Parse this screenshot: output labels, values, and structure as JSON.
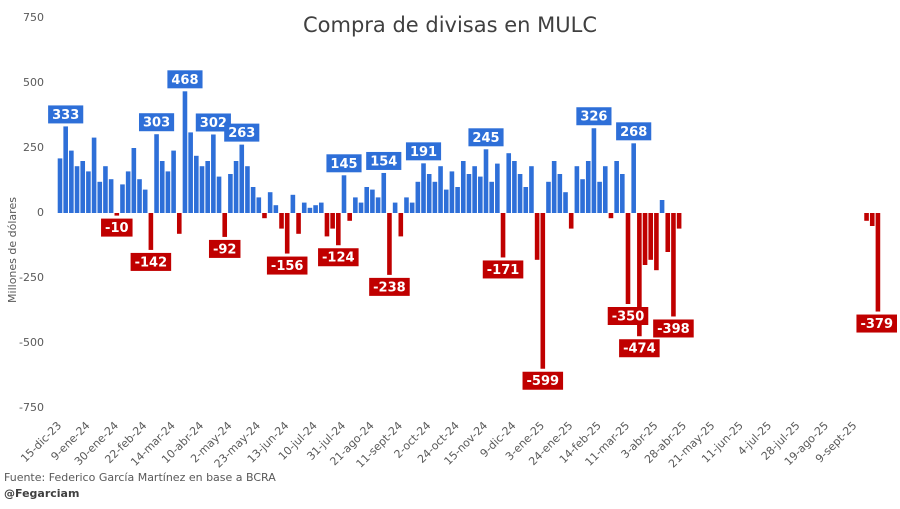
{
  "chart_data": {
    "type": "bar",
    "title": "Compra de divisas en MULC",
    "y_label": "Millones de dólares",
    "source": "Fuente: Federico García Martínez en base a BCRA",
    "credit": "@Fegarciam",
    "color": "#2e6fd8",
    "negative_color": "#c00000",
    "ylim": [
      -750,
      750
    ],
    "yticks": [
      -750,
      -500,
      -250,
      0,
      250,
      500,
      750
    ],
    "grid": false,
    "categories": [
      "15-dic-23",
      null,
      null,
      null,
      null,
      "9-ene-24",
      null,
      null,
      null,
      null,
      "30-ene-24",
      null,
      null,
      null,
      null,
      "22-feb-24",
      null,
      null,
      null,
      null,
      "14-mar-24",
      null,
      null,
      null,
      null,
      "10-abr-24",
      null,
      null,
      null,
      null,
      "2-may-24",
      null,
      null,
      null,
      null,
      "23-may-24",
      null,
      null,
      null,
      null,
      "13-jun-24",
      null,
      null,
      null,
      null,
      "10-jul-24",
      null,
      null,
      null,
      null,
      "31-jul-24",
      null,
      null,
      null,
      null,
      "21-ago-24",
      null,
      null,
      null,
      null,
      "11-sept-24",
      null,
      null,
      null,
      null,
      "2-oct-24",
      null,
      null,
      null,
      null,
      "24-oct-24",
      null,
      null,
      null,
      null,
      "15-nov-24",
      null,
      null,
      null,
      null,
      "9-dic-24",
      null,
      null,
      null,
      null,
      "3-ene-25",
      null,
      null,
      null,
      null,
      "24-ene-25",
      null,
      null,
      null,
      null,
      "14-feb-25",
      null,
      null,
      null,
      null,
      "11-mar-25",
      null,
      null,
      null,
      null,
      "3-abr-25",
      null,
      null,
      null,
      null,
      "28-abr-25",
      null,
      null,
      null,
      null,
      "21-may-25",
      null,
      null,
      null,
      null,
      "11-jun-25",
      null,
      null,
      null,
      null,
      "4-jul-25",
      null,
      null,
      null,
      null,
      "28-jul-25",
      null,
      null,
      null,
      null,
      "19-ago-25",
      null,
      null,
      null,
      null,
      "9-sept-25",
      null,
      null,
      null,
      null
    ],
    "values": [
      210,
      333,
      240,
      180,
      200,
      160,
      290,
      120,
      180,
      130,
      -10,
      110,
      160,
      250,
      130,
      90,
      -142,
      303,
      200,
      160,
      240,
      -80,
      468,
      310,
      220,
      180,
      200,
      302,
      140,
      -92,
      150,
      200,
      263,
      180,
      100,
      60,
      -20,
      80,
      30,
      -60,
      -156,
      70,
      -80,
      40,
      20,
      30,
      40,
      -90,
      -60,
      -124,
      145,
      -30,
      60,
      40,
      100,
      90,
      60,
      154,
      -238,
      40,
      -90,
      60,
      40,
      120,
      191,
      150,
      120,
      180,
      90,
      160,
      100,
      200,
      150,
      180,
      140,
      245,
      120,
      190,
      -171,
      230,
      200,
      150,
      100,
      180,
      -180,
      -599,
      120,
      200,
      150,
      80,
      -60,
      180,
      130,
      200,
      326,
      120,
      180,
      -20,
      200,
      150,
      -350,
      268,
      -474,
      -200,
      -180,
      -220,
      50,
      -150,
      -398,
      -60,
      0,
      0,
      0,
      0,
      0,
      0,
      0,
      0,
      0,
      0,
      0,
      0,
      0,
      0,
      0,
      0,
      0,
      0,
      0,
      0,
      0,
      0,
      0,
      0,
      0,
      0,
      0,
      0,
      0,
      0,
      0,
      0,
      -30,
      -50,
      -379
    ],
    "value_labels": [
      null,
      "333",
      null,
      null,
      null,
      null,
      null,
      null,
      null,
      null,
      "-10",
      null,
      null,
      null,
      null,
      null,
      "-142",
      "303",
      null,
      null,
      null,
      null,
      "468",
      null,
      null,
      null,
      null,
      "302",
      null,
      "-92",
      null,
      null,
      "263",
      null,
      null,
      null,
      null,
      null,
      null,
      null,
      "-156",
      null,
      null,
      null,
      null,
      null,
      null,
      null,
      null,
      "-124",
      "145",
      null,
      null,
      null,
      null,
      null,
      null,
      "154",
      "-238",
      null,
      null,
      null,
      null,
      null,
      "191",
      null,
      null,
      null,
      null,
      null,
      null,
      null,
      null,
      null,
      null,
      "245",
      null,
      null,
      "-171",
      null,
      null,
      null,
      null,
      null,
      null,
      "-599",
      null,
      null,
      null,
      null,
      null,
      null,
      null,
      null,
      "326",
      null,
      null,
      null,
      null,
      null,
      "-350",
      "268",
      "-474",
      null,
      null,
      null,
      null,
      null,
      "-398",
      null,
      null,
      null,
      null,
      null,
      null,
      null,
      null,
      null,
      null,
      null,
      null,
      null,
      null,
      null,
      null,
      null,
      null,
      null,
      null,
      null,
      null,
      null,
      null,
      null,
      null,
      null,
      null,
      null,
      null,
      null,
      null,
      null,
      null,
      null,
      "-379"
    ]
  }
}
